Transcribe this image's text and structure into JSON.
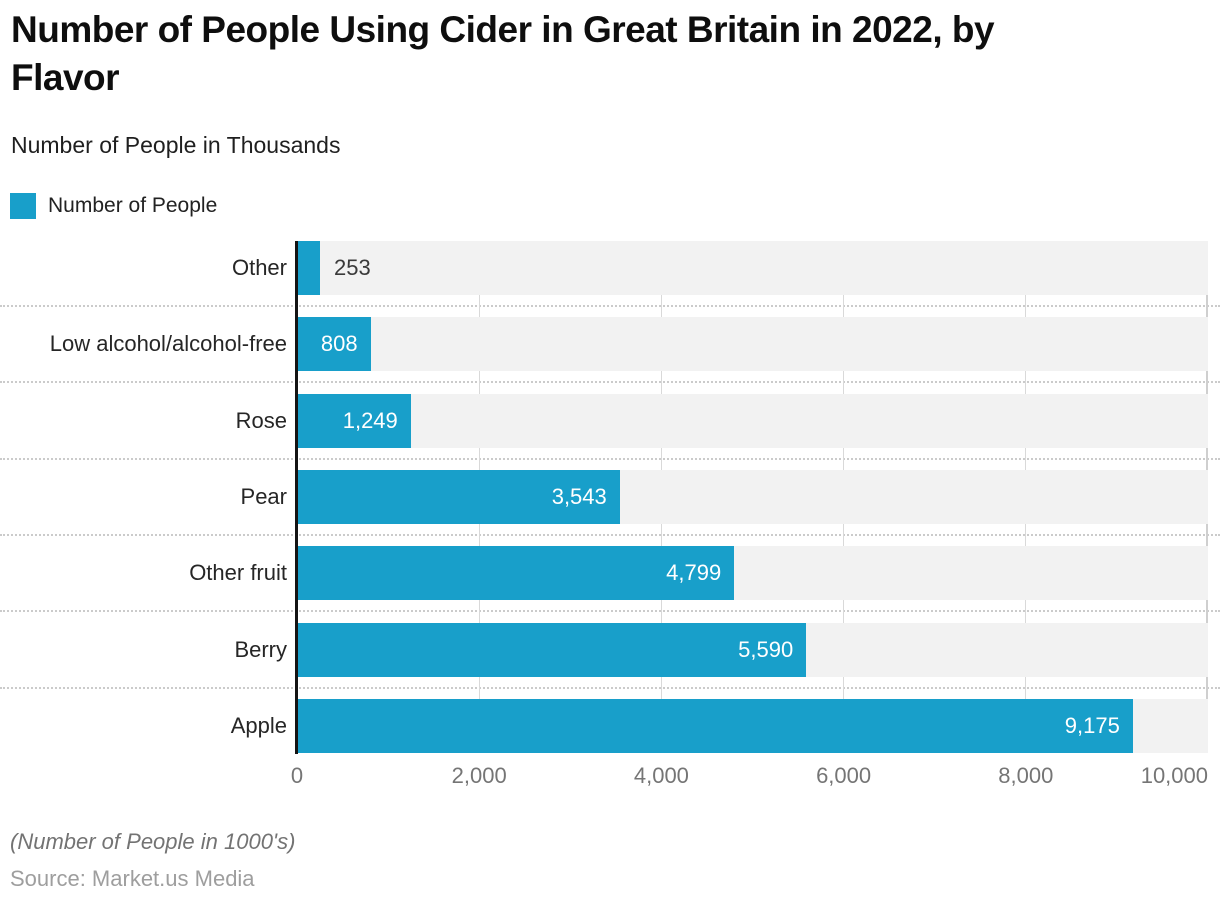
{
  "header": {
    "title": "Number of People Using Cider in Great Britain in 2022, by Flavor",
    "title_lines": [
      "Number of People Using Cider in Great Britain in 2022, by",
      "Flavor"
    ],
    "subtitle": "Number of People in Thousands"
  },
  "legend": {
    "label": "Number of People"
  },
  "chart_data": {
    "type": "bar",
    "orientation": "horizontal",
    "title": "Number of People Using Cider in Great Britain in 2022, by Flavor",
    "subtitle": "Number of People in Thousands",
    "series_name": "Number of People",
    "categories": [
      "Other",
      "Low alcohol/alcohol-free",
      "Rose",
      "Pear",
      "Other fruit",
      "Berry",
      "Apple"
    ],
    "values": [
      253,
      808,
      1249,
      3543,
      4799,
      5590,
      9175
    ],
    "value_labels": [
      "253",
      "808",
      "1,249",
      "3,543",
      "4,799",
      "5,590",
      "9,175"
    ],
    "xlim": [
      0,
      10000
    ],
    "x_ticks": [
      0,
      2000,
      4000,
      6000,
      8000,
      10000
    ],
    "x_tick_labels": [
      "0",
      "2,000",
      "4,000",
      "6,000",
      "8,000",
      "10,000"
    ],
    "grid": "vertical solid gridlines; dotted horizontal separators between categories",
    "legend_position": "top-left",
    "units": "thousands of people"
  },
  "colors": {
    "bar": "#189FCA",
    "track": "#F2F2F2",
    "gridline": "#D9D9D9",
    "separator": "#CBCBCB",
    "axis": "#141414",
    "value_inside": "#FFFFFF",
    "value_outside": "#3A3A3A"
  },
  "footer": {
    "note": "(Number of People in 1000's)",
    "source": "Source: Market.us Media"
  }
}
